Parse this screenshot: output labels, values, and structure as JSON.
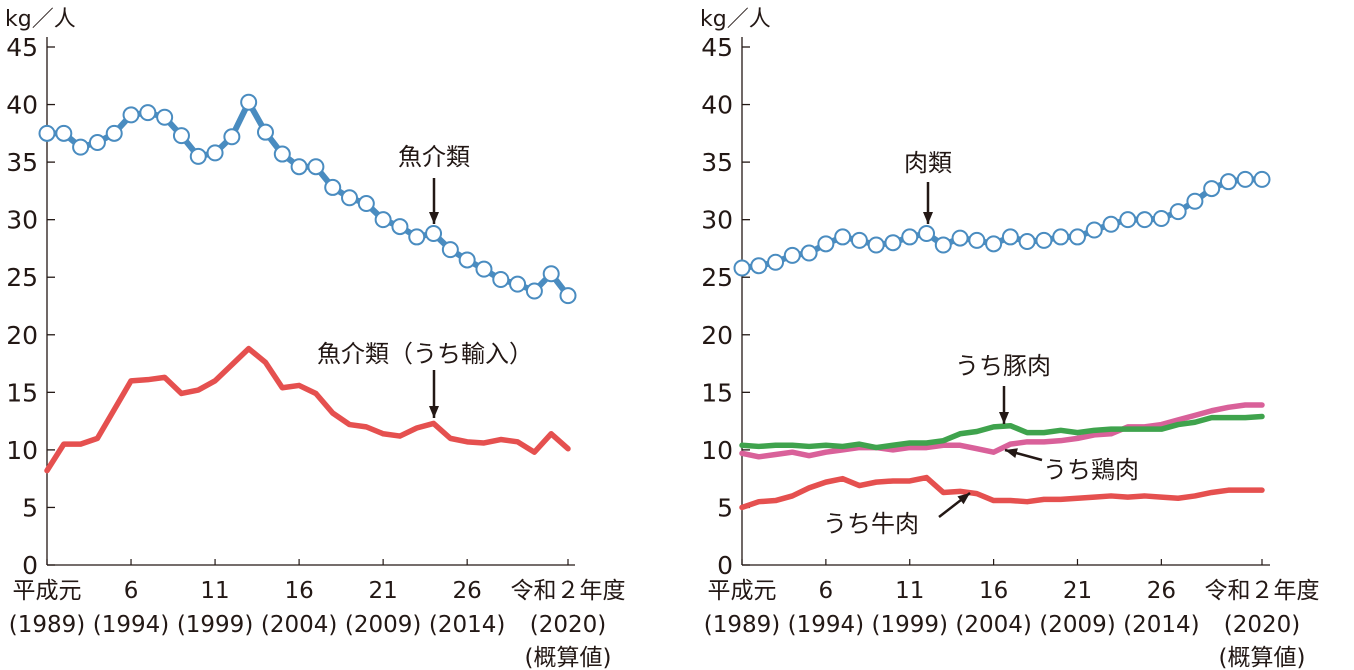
{
  "chart_data": [
    {
      "type": "line",
      "ylabel": "kg／人",
      "ylim": [
        0,
        45
      ],
      "yticks": [
        0,
        5,
        10,
        15,
        20,
        25,
        30,
        35,
        40,
        45
      ],
      "x": [
        1989,
        1990,
        1991,
        1992,
        1993,
        1994,
        1995,
        1996,
        1997,
        1998,
        1999,
        2000,
        2001,
        2002,
        2003,
        2004,
        2005,
        2006,
        2007,
        2008,
        2009,
        2010,
        2011,
        2012,
        2013,
        2014,
        2015,
        2016,
        2017,
        2018,
        2019,
        2020
      ],
      "xtick_labels": [
        {
          "x": 1989,
          "line1": "平成元",
          "line2": "(1989)"
        },
        {
          "x": 1994,
          "line1": "6",
          "line2": "(1994)"
        },
        {
          "x": 1999,
          "line1": "11",
          "line2": "(1999)"
        },
        {
          "x": 2004,
          "line1": "16",
          "line2": "(2004)"
        },
        {
          "x": 2009,
          "line1": "21",
          "line2": "(2009)"
        },
        {
          "x": 2014,
          "line1": "26",
          "line2": "(2014)"
        },
        {
          "x": 2020,
          "line1": "令和２年度",
          "line2": "(2020)",
          "line3": "(概算値)"
        }
      ],
      "series": [
        {
          "name": "魚介類",
          "color": "#4a8cc0",
          "marker": "circle",
          "annotation_x": 2012,
          "values": [
            37.5,
            37.5,
            36.3,
            36.7,
            37.5,
            39.1,
            39.3,
            38.9,
            37.3,
            35.5,
            35.8,
            37.2,
            40.2,
            37.6,
            35.7,
            34.6,
            34.6,
            32.8,
            31.9,
            31.4,
            30.0,
            29.4,
            28.5,
            28.8,
            27.4,
            26.5,
            25.7,
            24.8,
            24.4,
            23.8,
            25.3,
            23.4
          ]
        },
        {
          "name": "魚介類（うち輸入）",
          "color": "#e5504f",
          "marker": "none",
          "annotation_x": 2012,
          "values": [
            8.2,
            10.5,
            10.5,
            11.0,
            13.5,
            16.0,
            16.1,
            16.3,
            14.9,
            15.2,
            16.0,
            17.4,
            18.8,
            17.6,
            15.4,
            15.6,
            14.9,
            13.2,
            12.2,
            12.0,
            11.4,
            11.2,
            11.9,
            12.3,
            11.0,
            10.7,
            10.6,
            10.9,
            10.7,
            9.8,
            11.4,
            10.1
          ]
        }
      ]
    },
    {
      "type": "line",
      "ylabel": "kg／人",
      "ylim": [
        0,
        45
      ],
      "yticks": [
        0,
        5,
        10,
        15,
        20,
        25,
        30,
        35,
        40,
        45
      ],
      "x": [
        1989,
        1990,
        1991,
        1992,
        1993,
        1994,
        1995,
        1996,
        1997,
        1998,
        1999,
        2000,
        2001,
        2002,
        2003,
        2004,
        2005,
        2006,
        2007,
        2008,
        2009,
        2010,
        2011,
        2012,
        2013,
        2014,
        2015,
        2016,
        2017,
        2018,
        2019,
        2020
      ],
      "xtick_labels": [
        {
          "x": 1989,
          "line1": "平成元",
          "line2": "(1989)"
        },
        {
          "x": 1994,
          "line1": "6",
          "line2": "(1994)"
        },
        {
          "x": 1999,
          "line1": "11",
          "line2": "(1999)"
        },
        {
          "x": 2004,
          "line1": "16",
          "line2": "(2004)"
        },
        {
          "x": 2009,
          "line1": "21",
          "line2": "(2009)"
        },
        {
          "x": 2014,
          "line1": "26",
          "line2": "(2014)"
        },
        {
          "x": 2020,
          "line1": "令和２年度",
          "line2": "(2020)",
          "line3": "(概算値)"
        }
      ],
      "series": [
        {
          "name": "肉類",
          "color": "#4a8cc0",
          "marker": "circle",
          "values": [
            25.8,
            26.0,
            26.3,
            26.9,
            27.1,
            27.9,
            28.5,
            28.2,
            27.8,
            28.0,
            28.5,
            28.8,
            27.8,
            28.4,
            28.2,
            27.9,
            28.5,
            28.1,
            28.2,
            28.5,
            28.5,
            29.1,
            29.6,
            30.0,
            30.0,
            30.1,
            30.7,
            31.6,
            32.7,
            33.3,
            33.5,
            33.5
          ]
        },
        {
          "name": "うち鶏肉",
          "color": "#d9619a",
          "marker": "none",
          "values": [
            9.7,
            9.4,
            9.6,
            9.8,
            9.5,
            9.8,
            10.0,
            10.2,
            10.2,
            10.0,
            10.2,
            10.2,
            10.4,
            10.4,
            10.1,
            9.8,
            10.5,
            10.7,
            10.7,
            10.8,
            11.0,
            11.3,
            11.4,
            12.0,
            12.0,
            12.2,
            12.6,
            13.0,
            13.4,
            13.7,
            13.9,
            13.9
          ]
        },
        {
          "name": "うち豚肉",
          "color": "#3fa34d",
          "marker": "none",
          "values": [
            10.4,
            10.3,
            10.4,
            10.4,
            10.3,
            10.4,
            10.3,
            10.5,
            10.2,
            10.4,
            10.6,
            10.6,
            10.8,
            11.4,
            11.6,
            12.0,
            12.1,
            11.5,
            11.5,
            11.7,
            11.5,
            11.7,
            11.8,
            11.8,
            11.8,
            11.8,
            12.2,
            12.4,
            12.8,
            12.8,
            12.8,
            12.9
          ]
        },
        {
          "name": "うち牛肉",
          "color": "#e5504f",
          "marker": "none",
          "values": [
            5.0,
            5.5,
            5.6,
            6.0,
            6.7,
            7.2,
            7.5,
            6.9,
            7.2,
            7.3,
            7.3,
            7.6,
            6.3,
            6.4,
            6.2,
            5.6,
            5.6,
            5.5,
            5.7,
            5.7,
            5.8,
            5.9,
            6.0,
            5.9,
            6.0,
            5.9,
            5.8,
            6.0,
            6.3,
            6.5,
            6.5,
            6.5
          ]
        }
      ]
    }
  ]
}
